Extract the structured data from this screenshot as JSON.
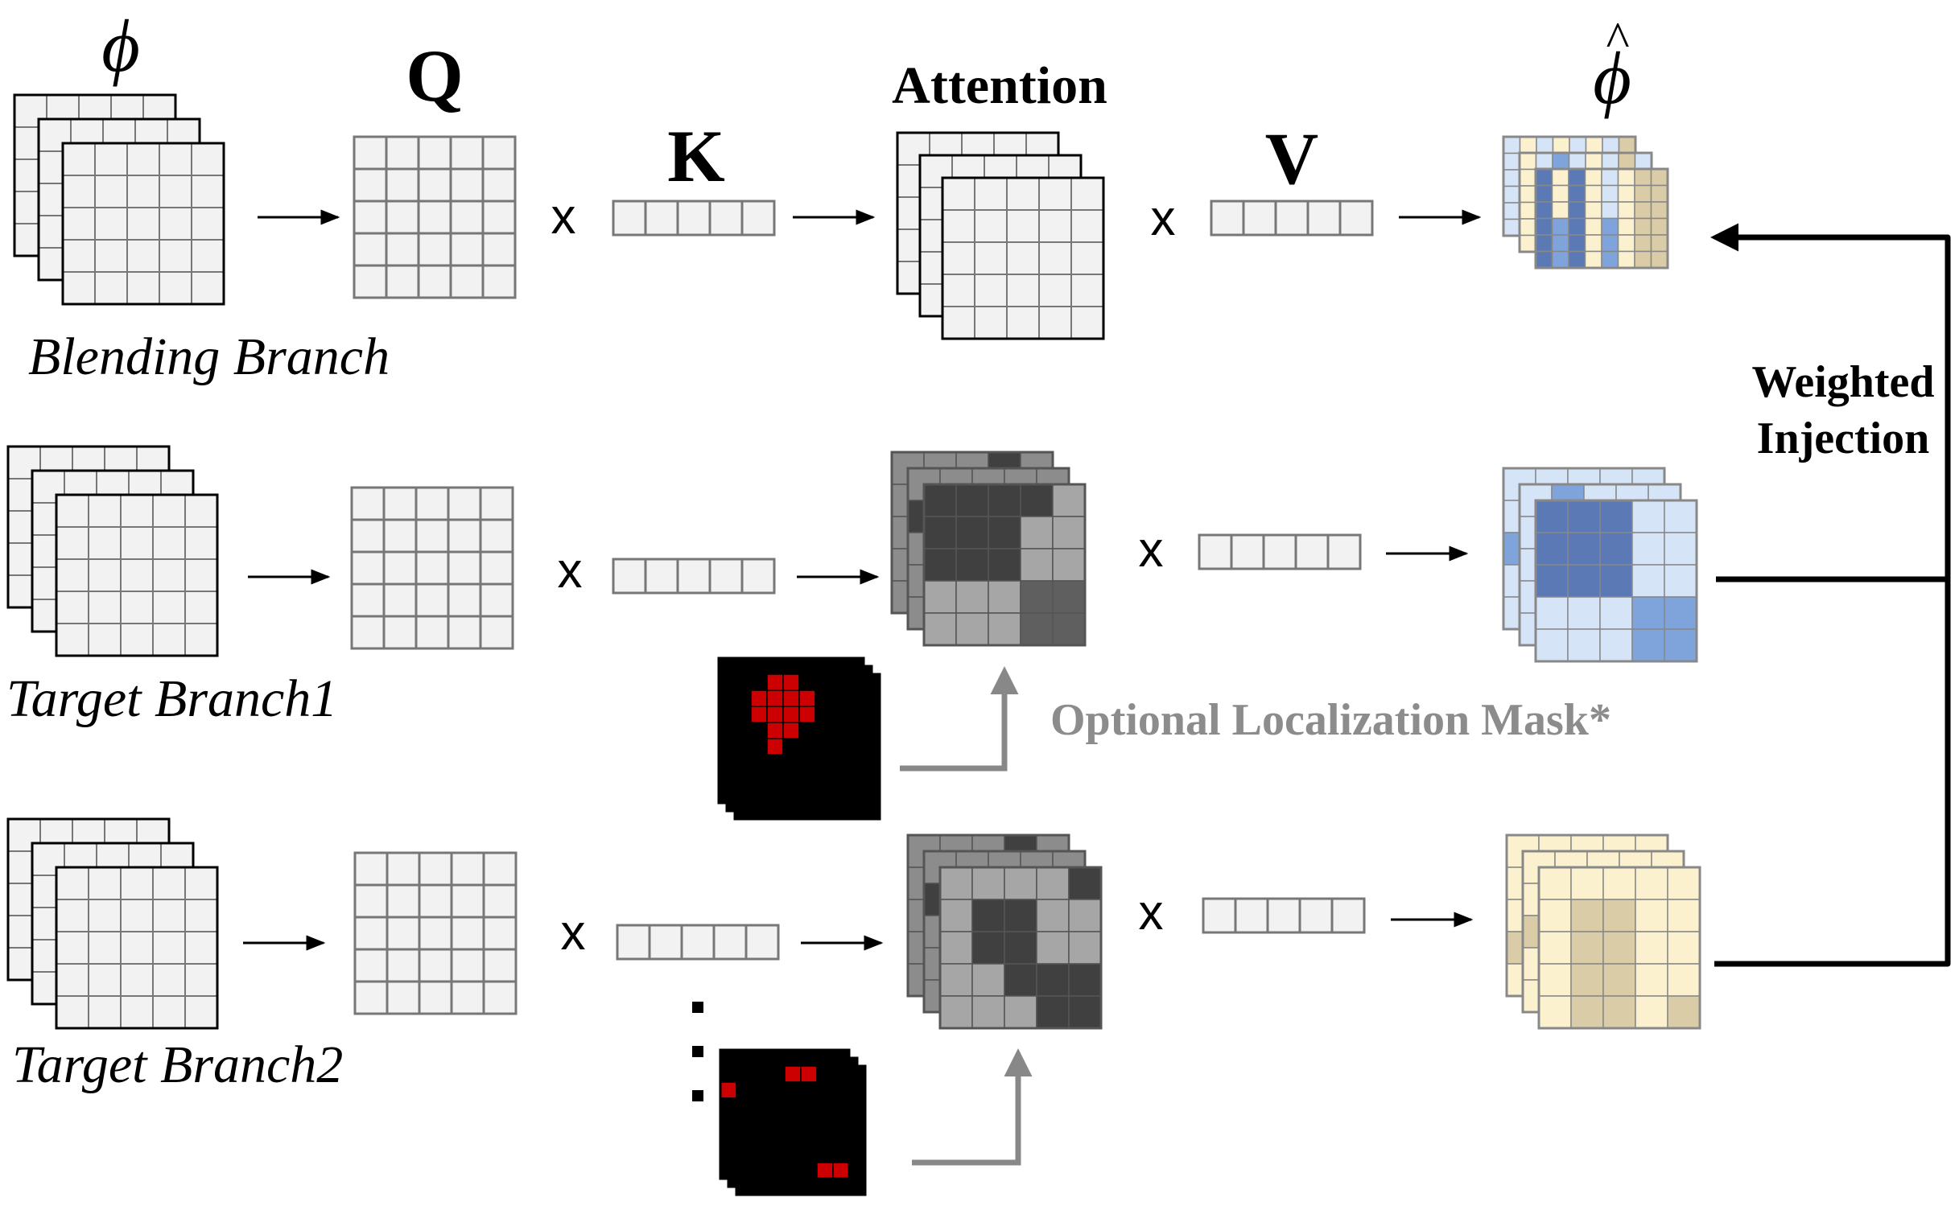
{
  "symbols": {
    "phi": "ϕ",
    "phi_hat": "ϕ",
    "hat": "^",
    "q": "Q",
    "k": "K",
    "v": "V",
    "attention": "Attention",
    "times": "x",
    "ellipsis_dot": "■"
  },
  "branches": [
    {
      "label": "Blending Branch"
    },
    {
      "label": "Target Branch1"
    },
    {
      "label": "Target Branch2"
    }
  ],
  "annotations": {
    "optional_mask": "Optional Localization Mask*",
    "weighted_injection_line1": "Weighted",
    "weighted_injection_line2": "Injection"
  },
  "colors": {
    "grid_fill": "#f2f2f2",
    "grid_stroke": "#777777",
    "attn_grey_light": "#a6a6a6",
    "attn_grey_mid": "#8c8c8c",
    "attn_grey_dark": "#404040",
    "blue_light": "#d6e4f7",
    "blue_mid": "#7fa4dc",
    "blue_dark": "#5b7ab5",
    "tan_light": "#fbf1cf",
    "tan_dark": "#d9cca6",
    "mask_black": "#000000",
    "mask_red": "#cc0000",
    "mask_arrow": "#888888",
    "mask_text": "#8c8c8c"
  }
}
